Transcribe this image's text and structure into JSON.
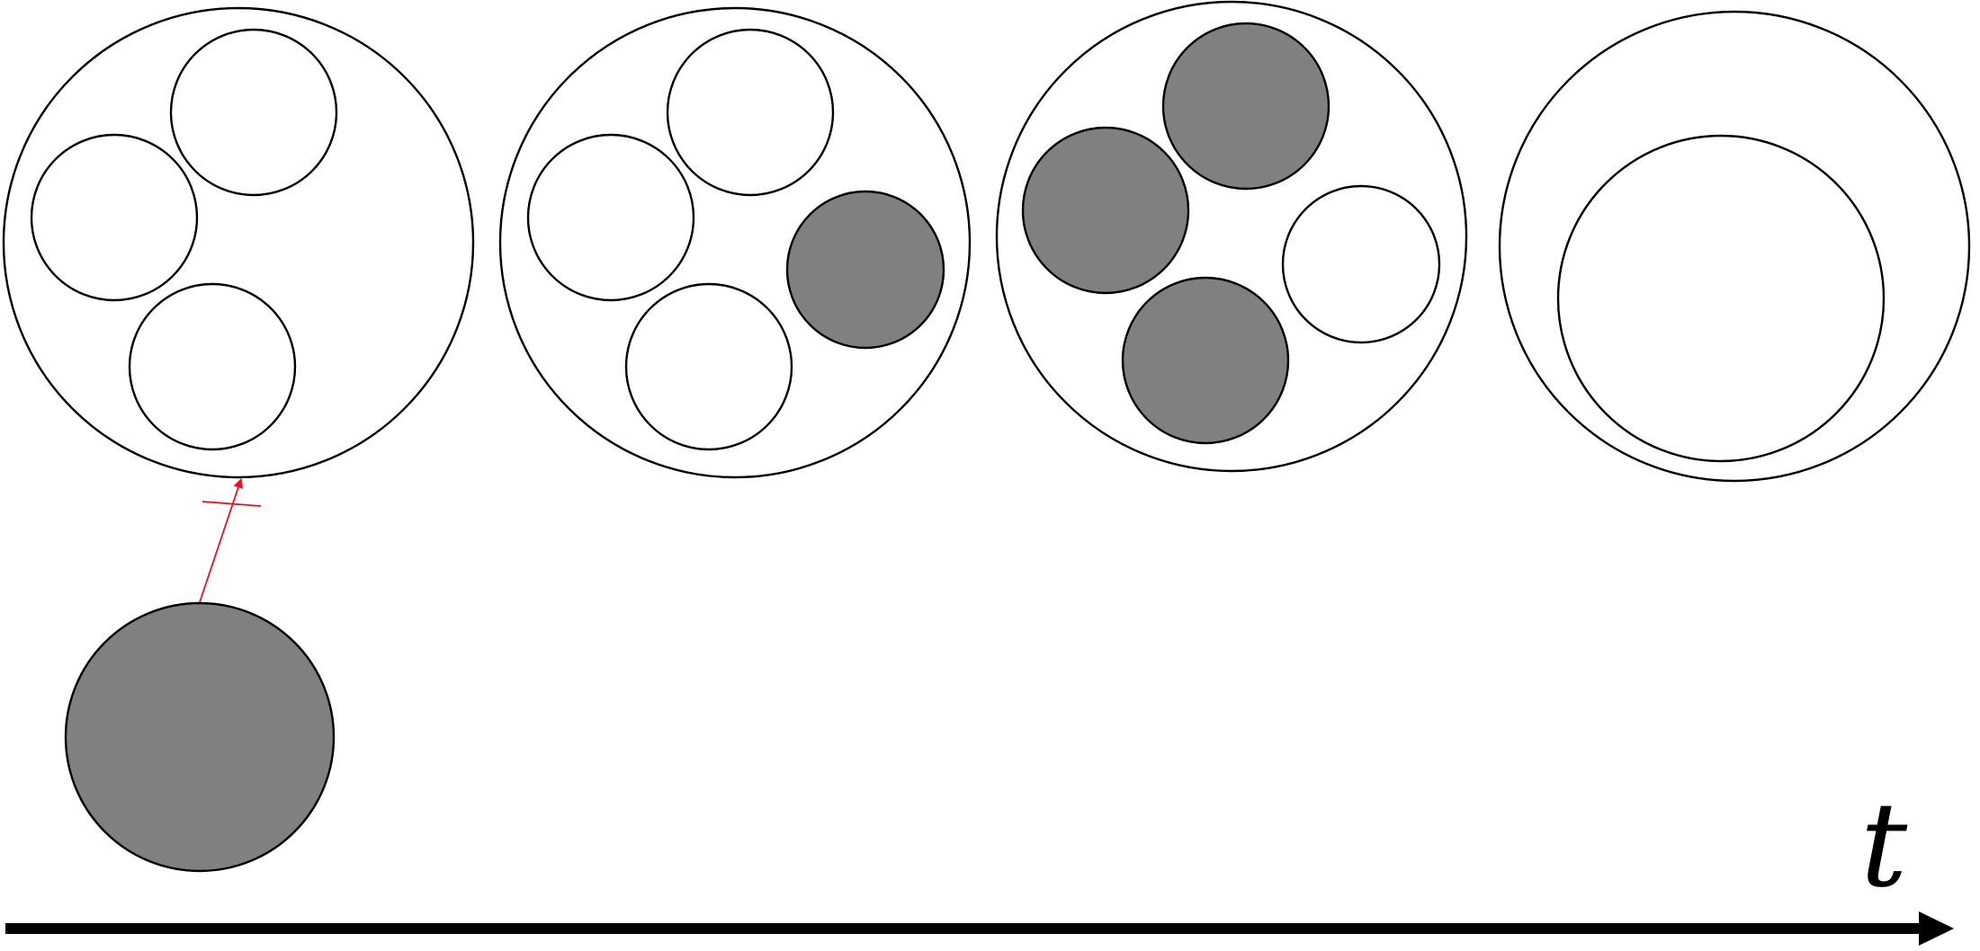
{
  "colors": {
    "background": "#ffffff",
    "outline": "#000000",
    "infected_fill": "#808080",
    "healthy_fill": "#ffffff",
    "blocked_arrow": "#e8111d",
    "time_axis": "#000000"
  },
  "stages": [
    {
      "id": "stage-1",
      "inner_cells": [
        {
          "id": "s1-c1",
          "state": "healthy"
        },
        {
          "id": "s1-c2",
          "state": "healthy"
        },
        {
          "id": "s1-c3",
          "state": "healthy"
        }
      ]
    },
    {
      "id": "stage-2",
      "inner_cells": [
        {
          "id": "s2-c1",
          "state": "healthy"
        },
        {
          "id": "s2-c2",
          "state": "healthy"
        },
        {
          "id": "s2-c3",
          "state": "healthy"
        },
        {
          "id": "s2-c4",
          "state": "infected"
        }
      ]
    },
    {
      "id": "stage-3",
      "inner_cells": [
        {
          "id": "s3-c1",
          "state": "infected"
        },
        {
          "id": "s3-c2",
          "state": "infected"
        },
        {
          "id": "s3-c3",
          "state": "infected"
        },
        {
          "id": "s3-c4",
          "state": "healthy"
        }
      ]
    },
    {
      "id": "stage-4",
      "inner_cells": [
        {
          "id": "s4-c1",
          "state": "healthy"
        }
      ]
    }
  ],
  "external_agent": {
    "state": "infected",
    "entry_blocked": true
  },
  "time_axis": {
    "label": "t"
  }
}
